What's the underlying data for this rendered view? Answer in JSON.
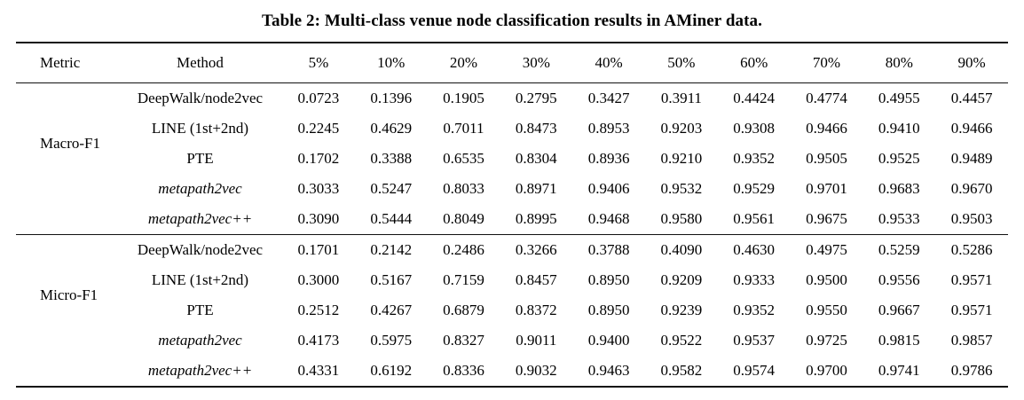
{
  "page": {
    "background_color": "#ffffff",
    "text_color": "#000000",
    "rule_color": "#111111"
  },
  "title": "Table 2: Multi-class venue node classification results in AMiner data.",
  "table": {
    "columns": [
      "Metric",
      "Method",
      "5%",
      "10%",
      "20%",
      "30%",
      "40%",
      "50%",
      "60%",
      "70%",
      "80%",
      "90%"
    ],
    "sections": [
      {
        "metric": "Macro-F1",
        "rows": [
          {
            "method": "DeepWalk/node2vec",
            "italic": false,
            "values": [
              "0.0723",
              "0.1396",
              "0.1905",
              "0.2795",
              "0.3427",
              "0.3911",
              "0.4424",
              "0.4774",
              "0.4955",
              "0.4457"
            ]
          },
          {
            "method": "LINE (1st+2nd)",
            "italic": false,
            "values": [
              "0.2245",
              "0.4629",
              "0.7011",
              "0.8473",
              "0.8953",
              "0.9203",
              "0.9308",
              "0.9466",
              "0.9410",
              "0.9466"
            ]
          },
          {
            "method": "PTE",
            "italic": false,
            "values": [
              "0.1702",
              "0.3388",
              "0.6535",
              "0.8304",
              "0.8936",
              "0.9210",
              "0.9352",
              "0.9505",
              "0.9525",
              "0.9489"
            ]
          },
          {
            "method": "metapath2vec",
            "italic": true,
            "values": [
              "0.3033",
              "0.5247",
              "0.8033",
              "0.8971",
              "0.9406",
              "0.9532",
              "0.9529",
              "0.9701",
              "0.9683",
              "0.9670"
            ]
          },
          {
            "method": "metapath2vec++",
            "italic": true,
            "values": [
              "0.3090",
              "0.5444",
              "0.8049",
              "0.8995",
              "0.9468",
              "0.9580",
              "0.9561",
              "0.9675",
              "0.9533",
              "0.9503"
            ]
          }
        ]
      },
      {
        "metric": "Micro-F1",
        "rows": [
          {
            "method": "DeepWalk/node2vec",
            "italic": false,
            "values": [
              "0.1701",
              "0.2142",
              "0.2486",
              "0.3266",
              "0.3788",
              "0.4090",
              "0.4630",
              "0.4975",
              "0.5259",
              "0.5286"
            ]
          },
          {
            "method": "LINE (1st+2nd)",
            "italic": false,
            "values": [
              "0.3000",
              "0.5167",
              "0.7159",
              "0.8457",
              "0.8950",
              "0.9209",
              "0.9333",
              "0.9500",
              "0.9556",
              "0.9571"
            ]
          },
          {
            "method": "PTE",
            "italic": false,
            "values": [
              "0.2512",
              "0.4267",
              "0.6879",
              "0.8372",
              "0.8950",
              "0.9239",
              "0.9352",
              "0.9550",
              "0.9667",
              "0.9571"
            ]
          },
          {
            "method": "metapath2vec",
            "italic": true,
            "values": [
              "0.4173",
              "0.5975",
              "0.8327",
              "0.9011",
              "0.9400",
              "0.9522",
              "0.9537",
              "0.9725",
              "0.9815",
              "0.9857"
            ]
          },
          {
            "method": "metapath2vec++",
            "italic": true,
            "values": [
              "0.4331",
              "0.6192",
              "0.8336",
              "0.9032",
              "0.9463",
              "0.9582",
              "0.9574",
              "0.9700",
              "0.9741",
              "0.9786"
            ]
          }
        ]
      }
    ]
  }
}
